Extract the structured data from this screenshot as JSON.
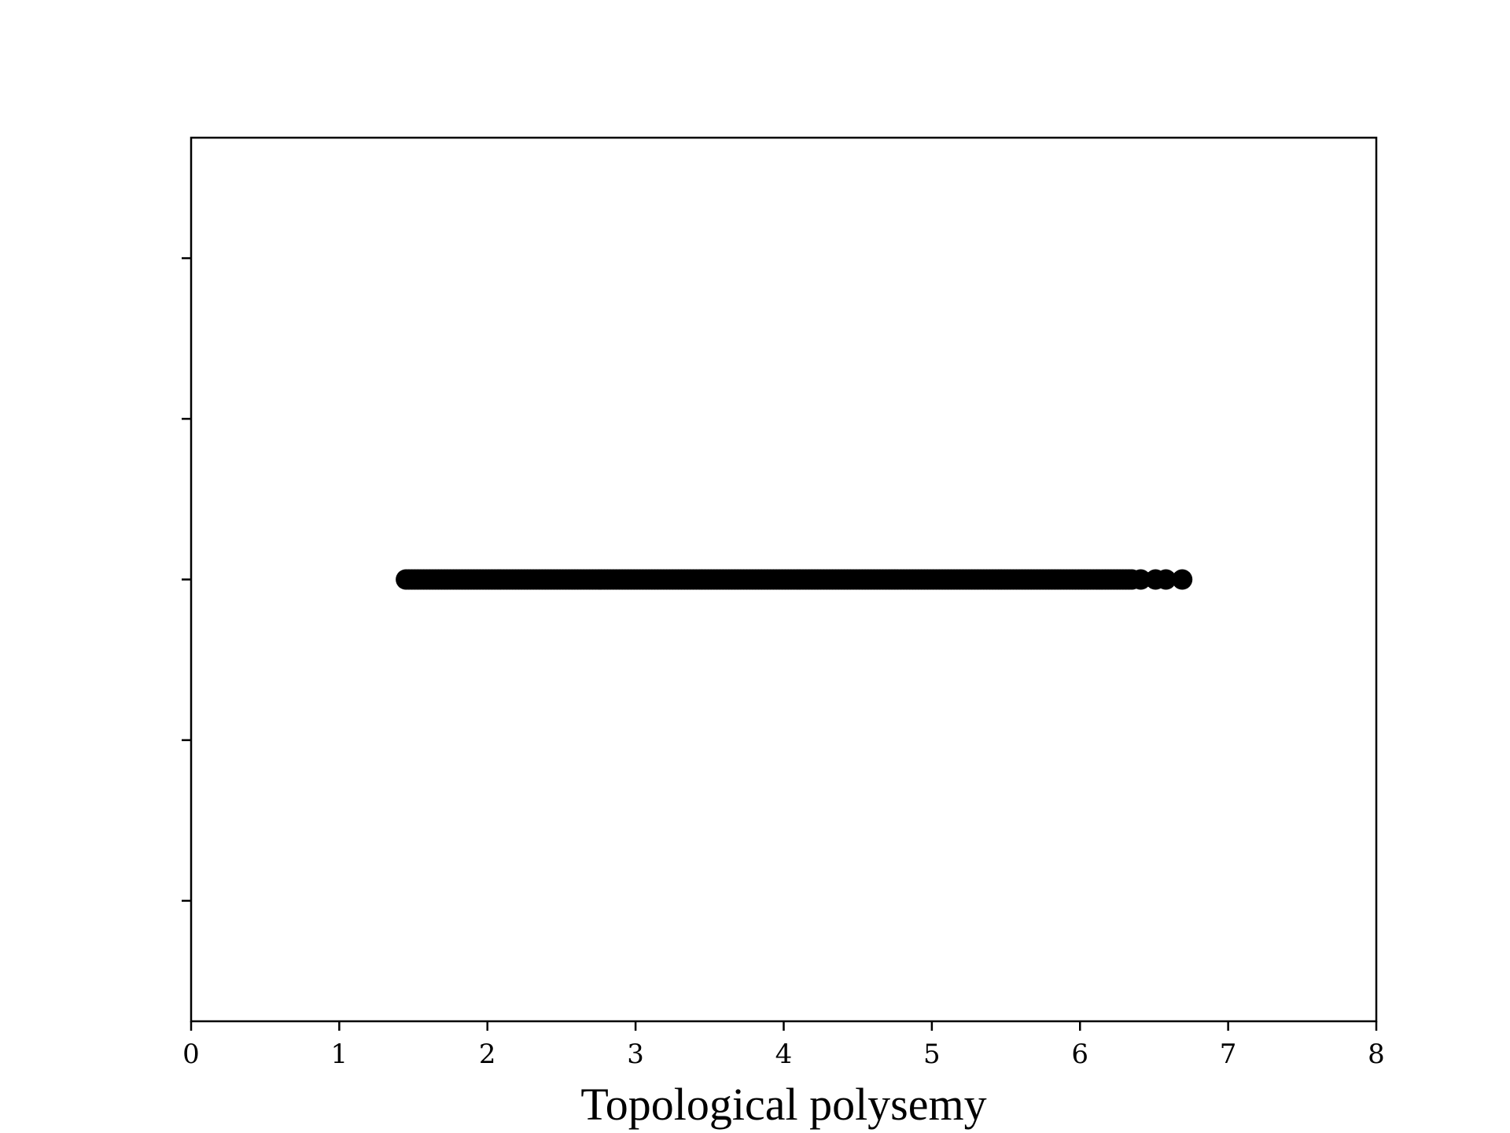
{
  "chart_data": {
    "type": "scatter",
    "title": "",
    "xlabel": "Topological polysemy",
    "ylabel": "",
    "xlim": [
      0,
      8
    ],
    "ylim": [
      -0.055,
      0.055
    ],
    "x_ticks": [
      0,
      1,
      2,
      3,
      4,
      5,
      6,
      7,
      8
    ],
    "x_tick_labels": [
      "0",
      "1",
      "2",
      "3",
      "4",
      "5",
      "6",
      "7",
      "8"
    ],
    "y_ticks": [
      -0.04,
      -0.02,
      0,
      0.02,
      0.04
    ],
    "y_tick_labels_visible": false,
    "grid": false,
    "legend": "none",
    "marker_color": "#000000",
    "series": [
      {
        "y": 0,
        "x_dense_range": [
          1.45,
          6.35
        ],
        "x_outliers": [
          6.41,
          6.51,
          6.58,
          6.69
        ]
      }
    ]
  }
}
